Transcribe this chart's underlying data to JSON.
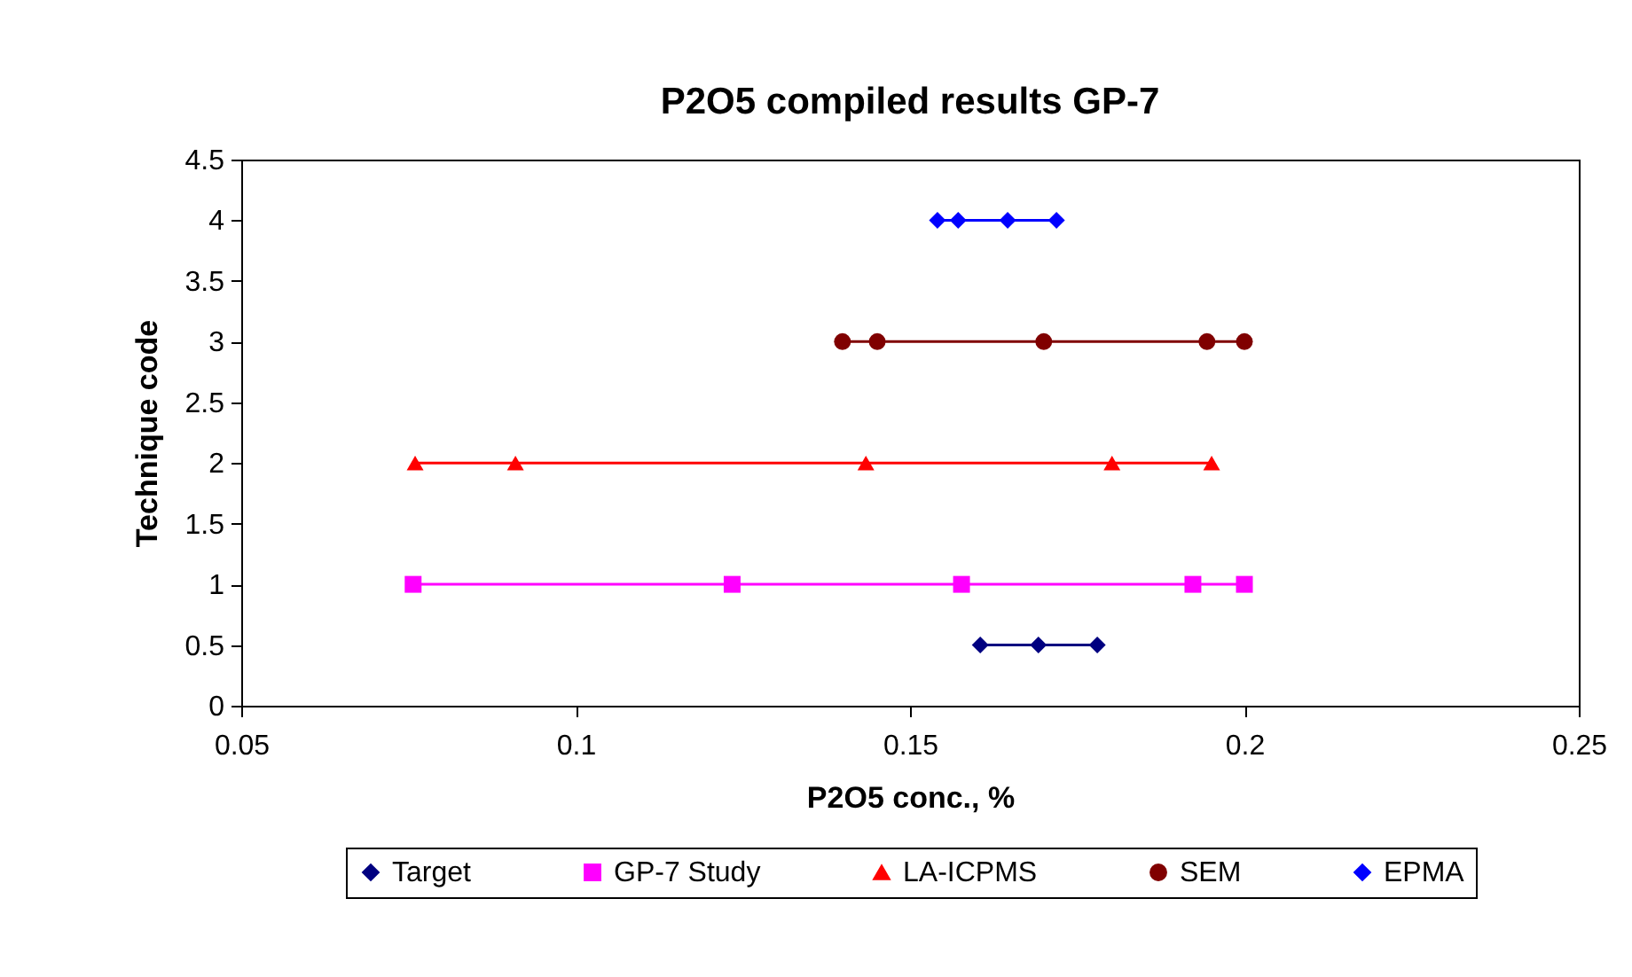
{
  "chart_data": {
    "type": "line",
    "title": "P2O5 compiled results GP-7",
    "xlabel": "P2O5 conc., %",
    "ylabel": "Technique code",
    "xlim": [
      0.05,
      0.25
    ],
    "xticks": [
      0.05,
      0.1,
      0.15,
      0.2,
      0.25
    ],
    "ylim": [
      0,
      4.5
    ],
    "yticks": [
      0,
      0.5,
      1,
      1.5,
      2,
      2.5,
      3,
      3.5,
      4,
      4.5
    ],
    "grid": false,
    "legend": "bottom",
    "line_style": "solid",
    "series": [
      {
        "name": "Target",
        "color": "#000080",
        "marker": "diamond",
        "x": [
          0.1605,
          0.1692,
          0.178
        ],
        "values": [
          0.5,
          0.5,
          0.5
        ]
      },
      {
        "name": "GP-7 Study",
        "color": "#ff00ff",
        "marker": "square",
        "x": [
          0.0757,
          0.1234,
          0.1577,
          0.1923,
          0.2
        ],
        "values": [
          1,
          1,
          1,
          1,
          1
        ]
      },
      {
        "name": "LA-ICPMS",
        "color": "#ff0000",
        "marker": "triangle",
        "x": [
          0.076,
          0.091,
          0.1434,
          0.1802,
          0.1951
        ],
        "values": [
          2,
          2,
          2,
          2,
          2
        ]
      },
      {
        "name": "SEM",
        "color": "#800000",
        "marker": "circle",
        "x": [
          0.1399,
          0.1451,
          0.17,
          0.1944,
          0.2
        ],
        "values": [
          3,
          3,
          3,
          3,
          3
        ]
      },
      {
        "name": "EPMA",
        "color": "#0000ff",
        "marker": "diamond",
        "x": [
          0.1541,
          0.1572,
          0.1646,
          0.1719
        ],
        "values": [
          4,
          4,
          4,
          4
        ]
      }
    ]
  }
}
